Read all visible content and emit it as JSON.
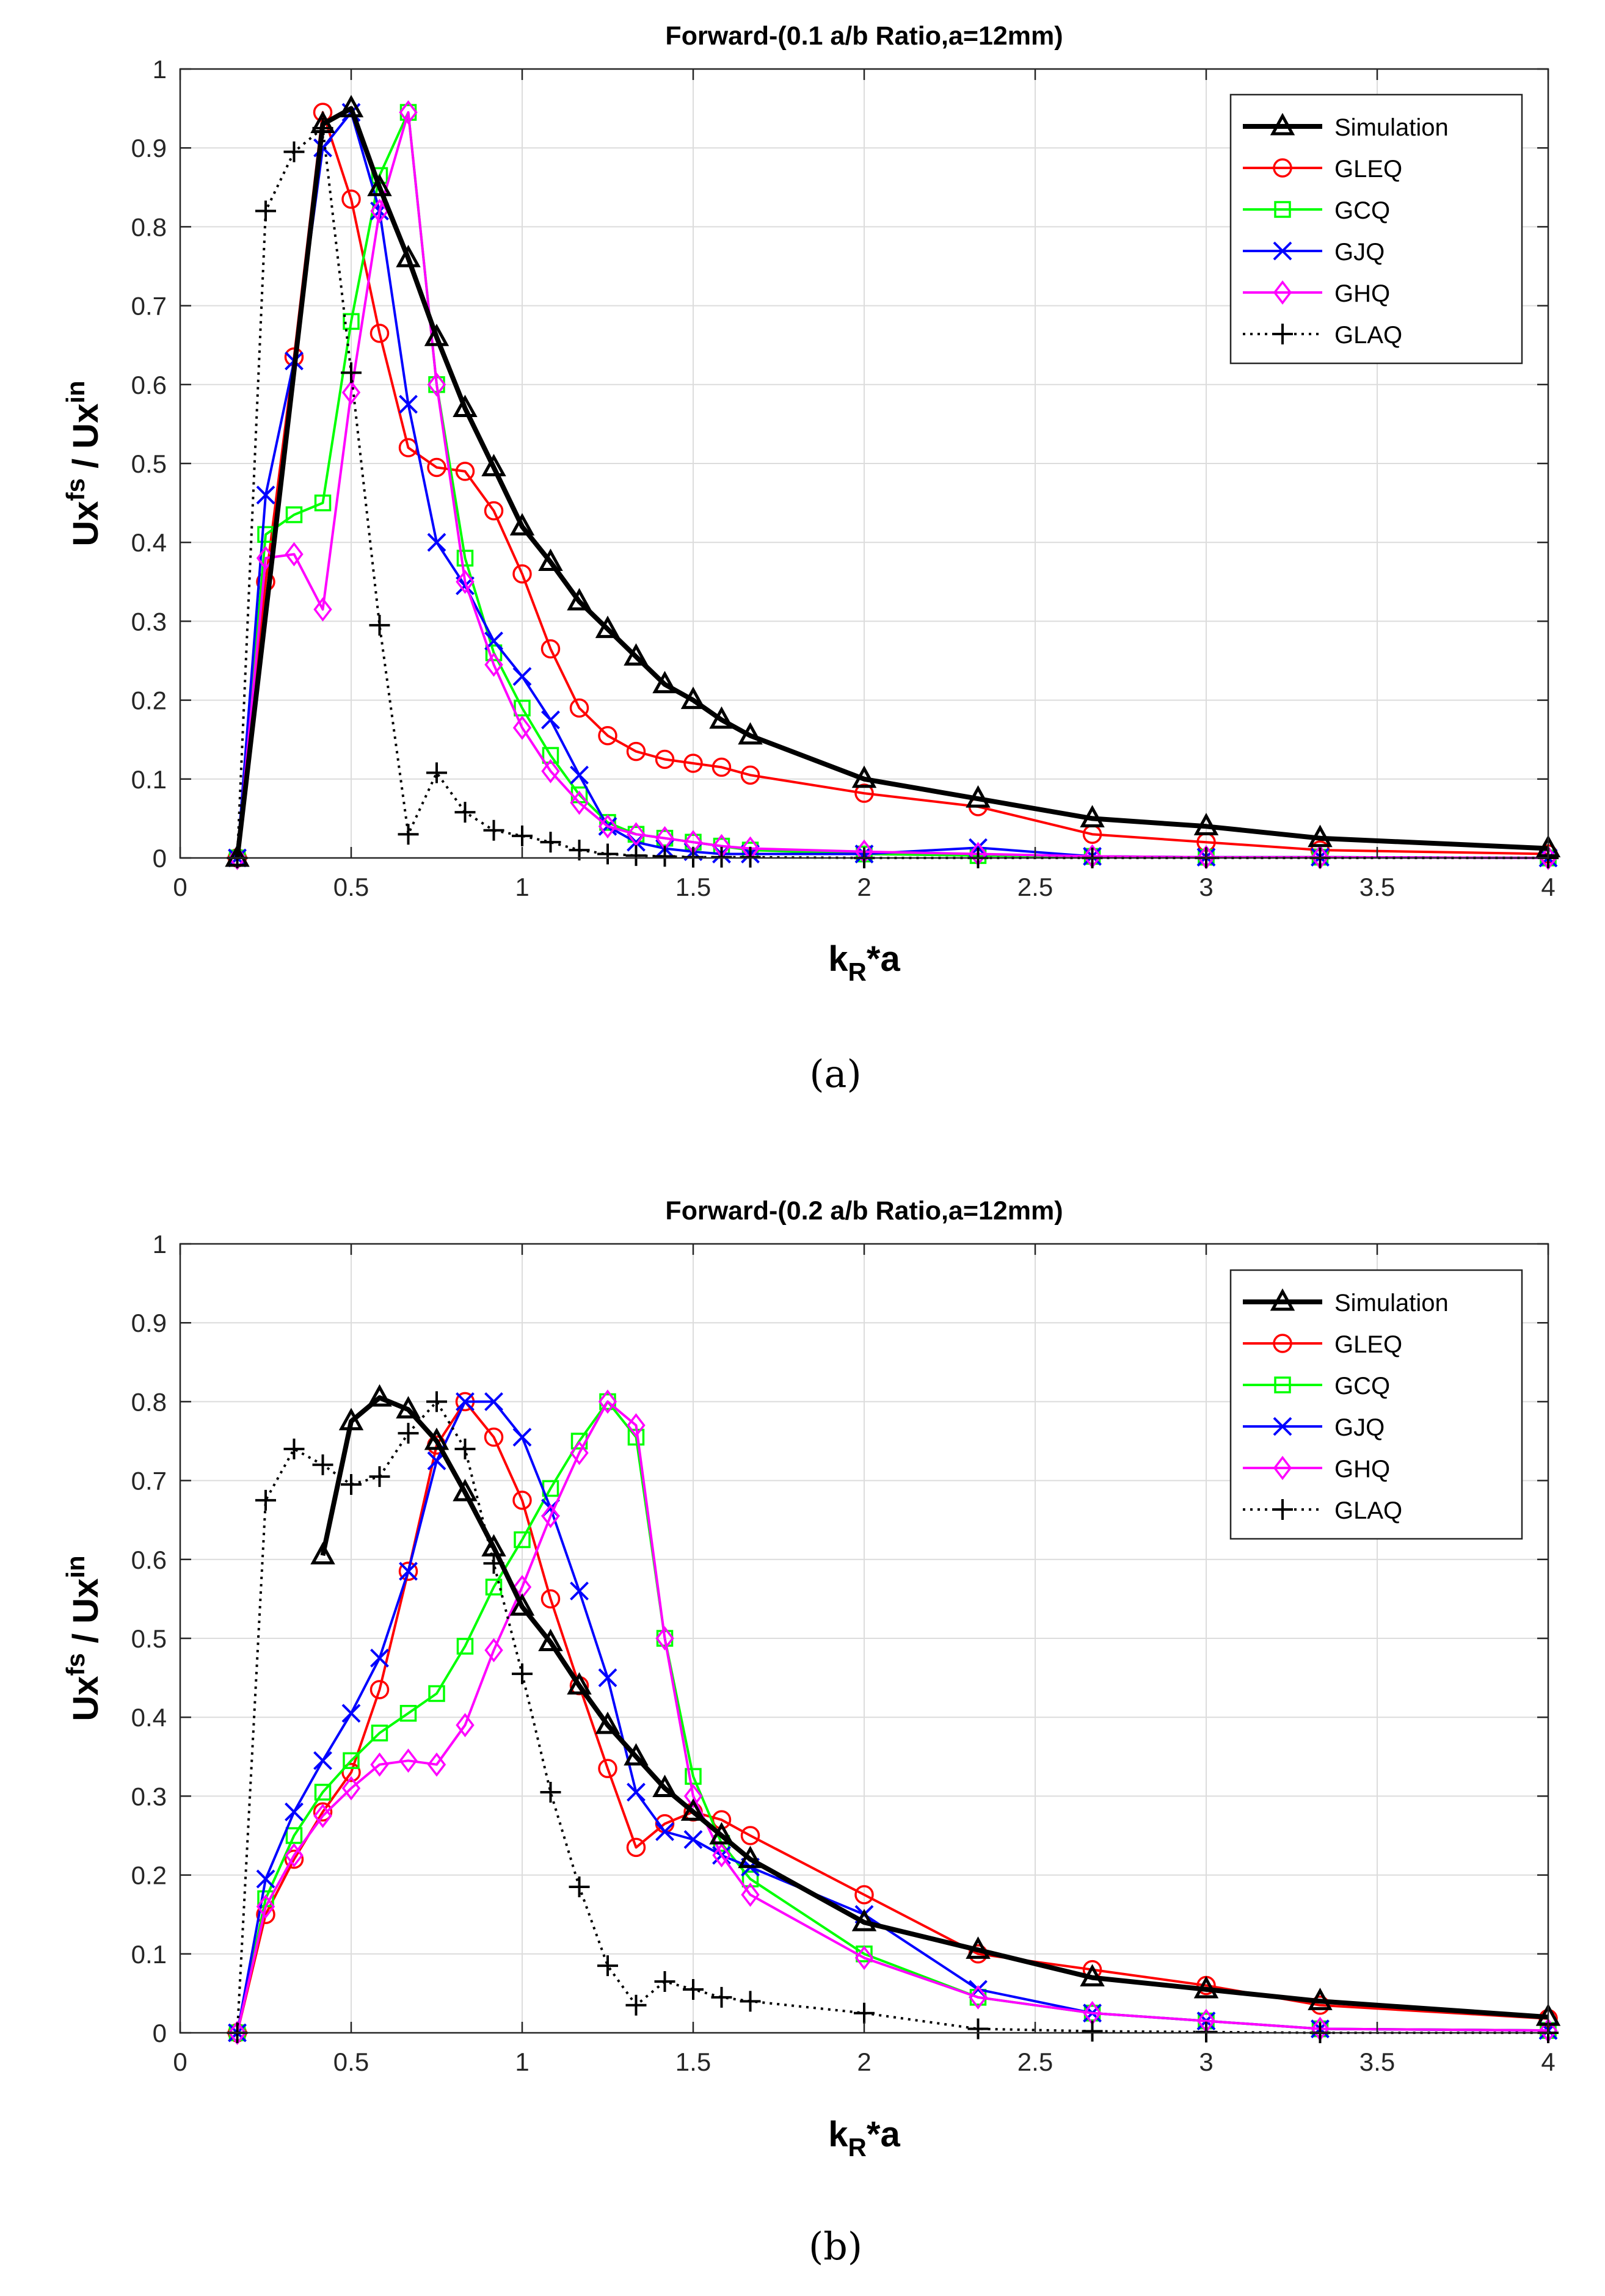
{
  "chart_data": [
    {
      "type": "line",
      "title": "Forward-(0.1 a/b Ratio,a=12mm)",
      "xlabel": "k_R*a",
      "ylabel": "Ux^fs / Ux^in",
      "xlim": [
        0,
        4
      ],
      "ylim": [
        0,
        1
      ],
      "xticks": [
        0,
        0.5,
        1,
        1.5,
        2,
        2.5,
        3,
        3.5,
        4
      ],
      "xtick_labels": [
        "0",
        "0.5",
        "1",
        "1.5",
        "2",
        "2.5",
        "3",
        "3.5",
        "4"
      ],
      "yticks": [
        0,
        0.1,
        0.2,
        0.3,
        0.4,
        0.5,
        0.6,
        0.7,
        0.8,
        0.9,
        1
      ],
      "ytick_labels": [
        "0",
        "0.1",
        "0.2",
        "0.3",
        "0.4",
        "0.5",
        "0.6",
        "0.7",
        "0.8",
        "0.9",
        "1"
      ],
      "grid": true,
      "legend_position": "top-right",
      "caption": "(a)",
      "series": [
        {
          "name": "Simulation",
          "color": "#000000",
          "marker": "triangle",
          "style": "solid",
          "width": "thick",
          "x": [
            0.167,
            0.417,
            0.5,
            0.583,
            0.667,
            0.75,
            0.833,
            0.917,
            1.0,
            1.083,
            1.167,
            1.25,
            1.333,
            1.417,
            1.5,
            1.583,
            1.667,
            2.0,
            2.333,
            2.667,
            3.0,
            3.333,
            4.0
          ],
          "y": [
            0.0,
            0.93,
            0.95,
            0.85,
            0.76,
            0.66,
            0.57,
            0.495,
            0.42,
            0.375,
            0.325,
            0.29,
            0.255,
            0.22,
            0.2,
            0.175,
            0.155,
            0.1,
            0.075,
            0.05,
            0.04,
            0.025,
            0.012
          ]
        },
        {
          "name": "GLEQ",
          "color": "#ff0000",
          "marker": "circle",
          "style": "solid",
          "width": "normal",
          "x": [
            0.167,
            0.25,
            0.333,
            0.417,
            0.5,
            0.583,
            0.667,
            0.75,
            0.833,
            0.917,
            1.0,
            1.083,
            1.167,
            1.25,
            1.333,
            1.417,
            1.5,
            1.583,
            1.667,
            2.0,
            2.333,
            2.667,
            3.0,
            3.333,
            4.0
          ],
          "y": [
            0.0,
            0.35,
            0.635,
            0.945,
            0.835,
            0.665,
            0.52,
            0.495,
            0.49,
            0.44,
            0.36,
            0.265,
            0.19,
            0.155,
            0.135,
            0.125,
            0.12,
            0.115,
            0.105,
            0.082,
            0.065,
            0.03,
            0.02,
            0.01,
            0.005
          ]
        },
        {
          "name": "GCQ",
          "color": "#00ff00",
          "marker": "square",
          "style": "solid",
          "width": "normal",
          "x": [
            0.167,
            0.25,
            0.333,
            0.417,
            0.5,
            0.583,
            0.667,
            0.75,
            0.833,
            0.917,
            1.0,
            1.083,
            1.167,
            1.25,
            1.333,
            1.417,
            1.5,
            1.583,
            1.667,
            2.0,
            2.333,
            2.667,
            3.0,
            3.333,
            4.0
          ],
          "y": [
            0.0,
            0.41,
            0.435,
            0.45,
            0.68,
            0.865,
            0.945,
            0.6,
            0.38,
            0.26,
            0.19,
            0.13,
            0.08,
            0.045,
            0.03,
            0.025,
            0.02,
            0.015,
            0.01,
            0.005,
            0.003,
            0.002,
            0.001,
            0.001,
            0.0
          ]
        },
        {
          "name": "GJQ",
          "color": "#0000ff",
          "marker": "x",
          "style": "solid",
          "width": "normal",
          "x": [
            0.167,
            0.25,
            0.333,
            0.417,
            0.5,
            0.583,
            0.667,
            0.75,
            0.833,
            0.917,
            1.0,
            1.083,
            1.167,
            1.25,
            1.333,
            1.417,
            1.5,
            1.583,
            1.667,
            2.0,
            2.333,
            2.667,
            3.0,
            3.333,
            4.0
          ],
          "y": [
            0.0,
            0.46,
            0.63,
            0.9,
            0.945,
            0.82,
            0.575,
            0.4,
            0.345,
            0.275,
            0.23,
            0.175,
            0.105,
            0.04,
            0.02,
            0.012,
            0.008,
            0.005,
            0.005,
            0.005,
            0.013,
            0.002,
            0.001,
            0.001,
            0.0
          ]
        },
        {
          "name": "GHQ",
          "color": "#ff00ff",
          "marker": "diamond",
          "style": "solid",
          "width": "normal",
          "x": [
            0.167,
            0.25,
            0.333,
            0.417,
            0.5,
            0.583,
            0.667,
            0.75,
            0.833,
            0.917,
            1.0,
            1.083,
            1.167,
            1.25,
            1.333,
            1.417,
            1.5,
            1.583,
            1.667,
            2.0,
            2.333,
            2.667,
            3.0,
            3.333,
            4.0
          ],
          "y": [
            0.0,
            0.38,
            0.385,
            0.315,
            0.59,
            0.82,
            0.945,
            0.6,
            0.35,
            0.245,
            0.165,
            0.11,
            0.07,
            0.04,
            0.03,
            0.025,
            0.02,
            0.015,
            0.012,
            0.008,
            0.005,
            0.002,
            0.001,
            0.001,
            0.0
          ]
        },
        {
          "name": "GLAQ",
          "color": "#000000",
          "marker": "plus",
          "style": "dotted",
          "width": "normal",
          "x": [
            0.167,
            0.25,
            0.333,
            0.417,
            0.5,
            0.583,
            0.667,
            0.75,
            0.833,
            0.917,
            1.0,
            1.083,
            1.167,
            1.25,
            1.333,
            1.417,
            1.5,
            1.583,
            1.667,
            2.0,
            2.333,
            2.667,
            3.0,
            3.333,
            4.0
          ],
          "y": [
            0.0,
            0.82,
            0.895,
            0.925,
            0.615,
            0.295,
            0.03,
            0.108,
            0.058,
            0.035,
            0.028,
            0.02,
            0.01,
            0.005,
            0.003,
            0.002,
            0.001,
            0.001,
            0.001,
            0.0,
            0.0,
            0.0,
            0.0,
            0.0,
            0.0
          ]
        }
      ]
    },
    {
      "type": "line",
      "title": "Forward-(0.2 a/b Ratio,a=12mm)",
      "xlabel": "k_R*a",
      "ylabel": "Ux^fs / Ux^in",
      "xlim": [
        0,
        4
      ],
      "ylim": [
        0,
        1
      ],
      "xticks": [
        0,
        0.5,
        1,
        1.5,
        2,
        2.5,
        3,
        3.5,
        4
      ],
      "xtick_labels": [
        "0",
        "0.5",
        "1",
        "1.5",
        "2",
        "2.5",
        "3",
        "3.5",
        "4"
      ],
      "yticks": [
        0,
        0.1,
        0.2,
        0.3,
        0.4,
        0.5,
        0.6,
        0.7,
        0.8,
        0.9,
        1
      ],
      "ytick_labels": [
        "0",
        "0.1",
        "0.2",
        "0.3",
        "0.4",
        "0.5",
        "0.6",
        "0.7",
        "0.8",
        "0.9",
        "1"
      ],
      "grid": true,
      "legend_position": "top-right",
      "caption": "(b)",
      "series": [
        {
          "name": "Simulation",
          "color": "#000000",
          "marker": "triangle",
          "style": "solid",
          "width": "thick",
          "x": [
            0.417,
            0.5,
            0.583,
            0.667,
            0.75,
            0.833,
            0.917,
            1.0,
            1.083,
            1.167,
            1.25,
            1.333,
            1.417,
            1.5,
            1.583,
            1.667,
            2.0,
            2.333,
            2.667,
            3.0,
            3.333,
            4.0
          ],
          "y": [
            0.605,
            0.775,
            0.805,
            0.79,
            0.75,
            0.685,
            0.615,
            0.54,
            0.495,
            0.44,
            0.39,
            0.35,
            0.31,
            0.28,
            0.25,
            0.22,
            0.14,
            0.105,
            0.07,
            0.055,
            0.04,
            0.02
          ]
        },
        {
          "name": "GLEQ",
          "color": "#ff0000",
          "marker": "circle",
          "style": "solid",
          "width": "normal",
          "x": [
            0.167,
            0.25,
            0.333,
            0.417,
            0.5,
            0.583,
            0.667,
            0.75,
            0.833,
            0.917,
            1.0,
            1.083,
            1.167,
            1.25,
            1.333,
            1.417,
            1.5,
            1.583,
            1.667,
            2.0,
            2.333,
            2.667,
            3.0,
            3.333,
            4.0
          ],
          "y": [
            0.0,
            0.15,
            0.22,
            0.28,
            0.33,
            0.435,
            0.585,
            0.745,
            0.8,
            0.755,
            0.675,
            0.55,
            0.44,
            0.335,
            0.235,
            0.265,
            0.28,
            0.27,
            0.25,
            0.175,
            0.1,
            0.08,
            0.06,
            0.035,
            0.018
          ]
        },
        {
          "name": "GCQ",
          "color": "#00ff00",
          "marker": "square",
          "style": "solid",
          "width": "normal",
          "x": [
            0.167,
            0.25,
            0.333,
            0.417,
            0.5,
            0.583,
            0.667,
            0.75,
            0.833,
            0.917,
            1.0,
            1.083,
            1.167,
            1.25,
            1.333,
            1.417,
            1.5,
            1.583,
            1.667,
            2.0,
            2.333,
            2.667,
            3.0,
            3.333,
            4.0
          ],
          "y": [
            0.0,
            0.17,
            0.25,
            0.305,
            0.345,
            0.38,
            0.405,
            0.43,
            0.49,
            0.565,
            0.625,
            0.69,
            0.75,
            0.8,
            0.755,
            0.5,
            0.325,
            0.24,
            0.195,
            0.1,
            0.045,
            0.025,
            0.015,
            0.005,
            0.003
          ]
        },
        {
          "name": "GJQ",
          "color": "#0000ff",
          "marker": "x",
          "style": "solid",
          "width": "normal",
          "x": [
            0.167,
            0.25,
            0.333,
            0.417,
            0.5,
            0.583,
            0.667,
            0.75,
            0.833,
            0.917,
            1.0,
            1.083,
            1.167,
            1.25,
            1.333,
            1.417,
            1.5,
            1.583,
            1.667,
            2.0,
            2.333,
            2.667,
            3.0,
            3.333,
            4.0
          ],
          "y": [
            0.0,
            0.195,
            0.28,
            0.345,
            0.405,
            0.475,
            0.585,
            0.725,
            0.8,
            0.8,
            0.755,
            0.665,
            0.56,
            0.45,
            0.305,
            0.255,
            0.245,
            0.225,
            0.21,
            0.15,
            0.055,
            0.025,
            0.015,
            0.005,
            0.003
          ]
        },
        {
          "name": "GHQ",
          "color": "#ff00ff",
          "marker": "diamond",
          "style": "solid",
          "width": "normal",
          "x": [
            0.167,
            0.25,
            0.333,
            0.417,
            0.5,
            0.583,
            0.667,
            0.75,
            0.833,
            0.917,
            1.0,
            1.083,
            1.167,
            1.25,
            1.333,
            1.417,
            1.5,
            1.583,
            1.667,
            2.0,
            2.333,
            2.667,
            3.0,
            3.333,
            4.0
          ],
          "y": [
            0.0,
            0.16,
            0.225,
            0.275,
            0.31,
            0.34,
            0.345,
            0.34,
            0.39,
            0.485,
            0.565,
            0.655,
            0.735,
            0.8,
            0.77,
            0.5,
            0.3,
            0.225,
            0.175,
            0.095,
            0.045,
            0.025,
            0.015,
            0.005,
            0.003
          ]
        },
        {
          "name": "GLAQ",
          "color": "#000000",
          "marker": "plus",
          "style": "dotted",
          "width": "normal",
          "x": [
            0.167,
            0.25,
            0.333,
            0.417,
            0.5,
            0.583,
            0.667,
            0.75,
            0.833,
            0.917,
            1.0,
            1.083,
            1.167,
            1.25,
            1.333,
            1.417,
            1.5,
            1.583,
            1.667,
            2.0,
            2.333,
            2.667,
            3.0,
            3.333,
            4.0
          ],
          "y": [
            0.0,
            0.675,
            0.74,
            0.72,
            0.695,
            0.705,
            0.76,
            0.8,
            0.74,
            0.595,
            0.455,
            0.305,
            0.185,
            0.085,
            0.035,
            0.065,
            0.055,
            0.045,
            0.04,
            0.025,
            0.005,
            0.002,
            0.001,
            0.0,
            0.0
          ]
        }
      ]
    }
  ]
}
